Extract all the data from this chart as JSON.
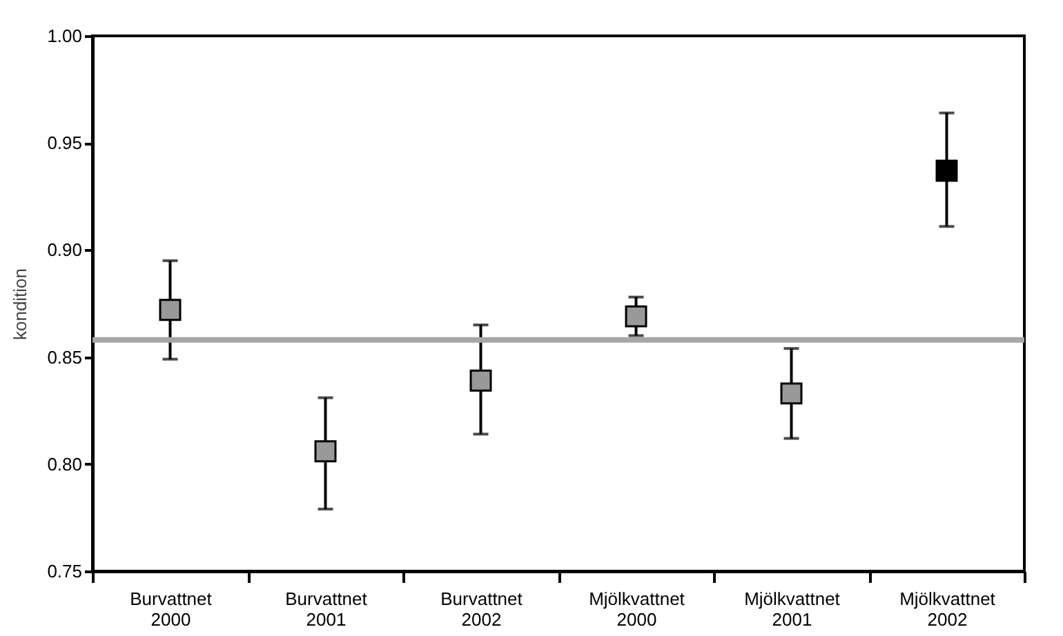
{
  "chart_data": {
    "type": "scatter",
    "ylabel": "kondition",
    "categories": [
      "Burvattnet 2000",
      "Burvattnet 2001",
      "Burvattnet 2002",
      "Mjölkvattnet 2000",
      "Mjölkvattnet 2001",
      "Mjölkvattnet 2002"
    ],
    "values": [
      0.872,
      0.806,
      0.839,
      0.869,
      0.833,
      0.937
    ],
    "colors": [
      "#999999",
      "#999999",
      "#999999",
      "#999999",
      "#999999",
      "#000000"
    ],
    "errors": [
      [
        0.849,
        0.895
      ],
      [
        0.779,
        0.831
      ],
      [
        0.814,
        0.865
      ],
      [
        0.86,
        0.878
      ],
      [
        0.812,
        0.854
      ],
      [
        0.911,
        0.964
      ]
    ],
    "marker": "square",
    "ylim": [
      0.75,
      1.0
    ],
    "yticks": [
      {
        "value": 0.75,
        "label": "0.75"
      },
      {
        "value": 0.8,
        "label": "0.80"
      },
      {
        "value": 0.85,
        "label": "0.85"
      },
      {
        "value": 0.9,
        "label": "0.90"
      },
      {
        "value": 0.95,
        "label": "0.95"
      },
      {
        "value": 1.0,
        "label": "1.00"
      }
    ],
    "ref_lines": [
      {
        "axis": "y",
        "value": 0.858,
        "color": "#a6a6a6"
      }
    ]
  }
}
